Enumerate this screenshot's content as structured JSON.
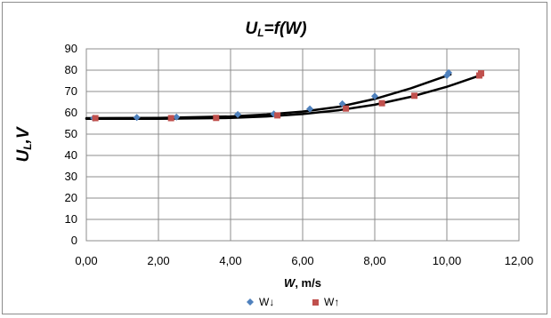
{
  "chart_data": {
    "type": "scatter",
    "title_main": "U",
    "title_sub": "L",
    "title_rest": "=f(W)",
    "xlabel_var": "W",
    "xlabel_unit": ", m/s",
    "ylabel_main": "U",
    "ylabel_sub": "L",
    "ylabel_rest": ",V",
    "xlim": [
      0,
      12
    ],
    "ylim": [
      0,
      90
    ],
    "xticks": [
      "0,00",
      "2,00",
      "4,00",
      "6,00",
      "8,00",
      "10,00",
      "12,00"
    ],
    "yticks": [
      "0",
      "10",
      "20",
      "30",
      "40",
      "50",
      "60",
      "70",
      "80",
      "90"
    ],
    "grid": true,
    "legend_position": "bottom",
    "series": [
      {
        "name": "W↓",
        "marker": "diamond",
        "color": "#4f81bd",
        "x": [
          0.2,
          1.4,
          2.5,
          4.2,
          5.2,
          6.2,
          7.1,
          8.0,
          10.0,
          10.05
        ],
        "y": [
          57.5,
          57.8,
          58.0,
          59.2,
          59.5,
          61.8,
          64.2,
          67.8,
          77.5,
          78.8
        ],
        "trend_x": [
          0,
          2,
          4,
          5,
          6,
          7,
          8,
          9,
          10.1
        ],
        "trend_y": [
          57.5,
          57.6,
          58.3,
          59.2,
          60.6,
          62.8,
          66.5,
          71.5,
          78.0
        ]
      },
      {
        "name": "W↑",
        "marker": "square",
        "color": "#c0504d",
        "x": [
          0.25,
          2.35,
          3.6,
          5.3,
          7.2,
          8.2,
          9.1,
          10.9,
          10.95
        ],
        "y": [
          57.5,
          57.5,
          57.6,
          58.8,
          62.0,
          64.5,
          68.0,
          77.5,
          78.5
        ],
        "trend_x": [
          0,
          2,
          4,
          5,
          6,
          7,
          8,
          9,
          10,
          11
        ],
        "trend_y": [
          57.2,
          57.2,
          57.6,
          58.3,
          59.4,
          61.2,
          63.8,
          67.5,
          72.2,
          78.0
        ]
      }
    ]
  }
}
